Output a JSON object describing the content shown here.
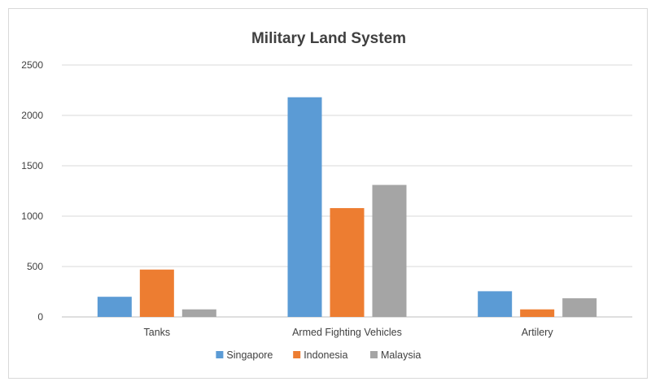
{
  "chart_data": {
    "type": "bar",
    "title": "Military Land System",
    "categories": [
      "Tanks",
      "Armed Fighting Vehicles",
      "Artilery"
    ],
    "series": [
      {
        "name": "Singapore",
        "color": "#5b9bd5",
        "values": [
          200,
          2180,
          255
        ]
      },
      {
        "name": "Indonesia",
        "color": "#ed7d31",
        "values": [
          470,
          1080,
          75
        ]
      },
      {
        "name": "Malaysia",
        "color": "#a5a5a5",
        "values": [
          75,
          1310,
          185
        ]
      }
    ],
    "ylim": [
      0,
      2500
    ],
    "yticks": [
      0,
      500,
      1000,
      1500,
      2000,
      2500
    ],
    "xlabel": "",
    "ylabel": "",
    "grid": true,
    "legend_position": "bottom"
  }
}
